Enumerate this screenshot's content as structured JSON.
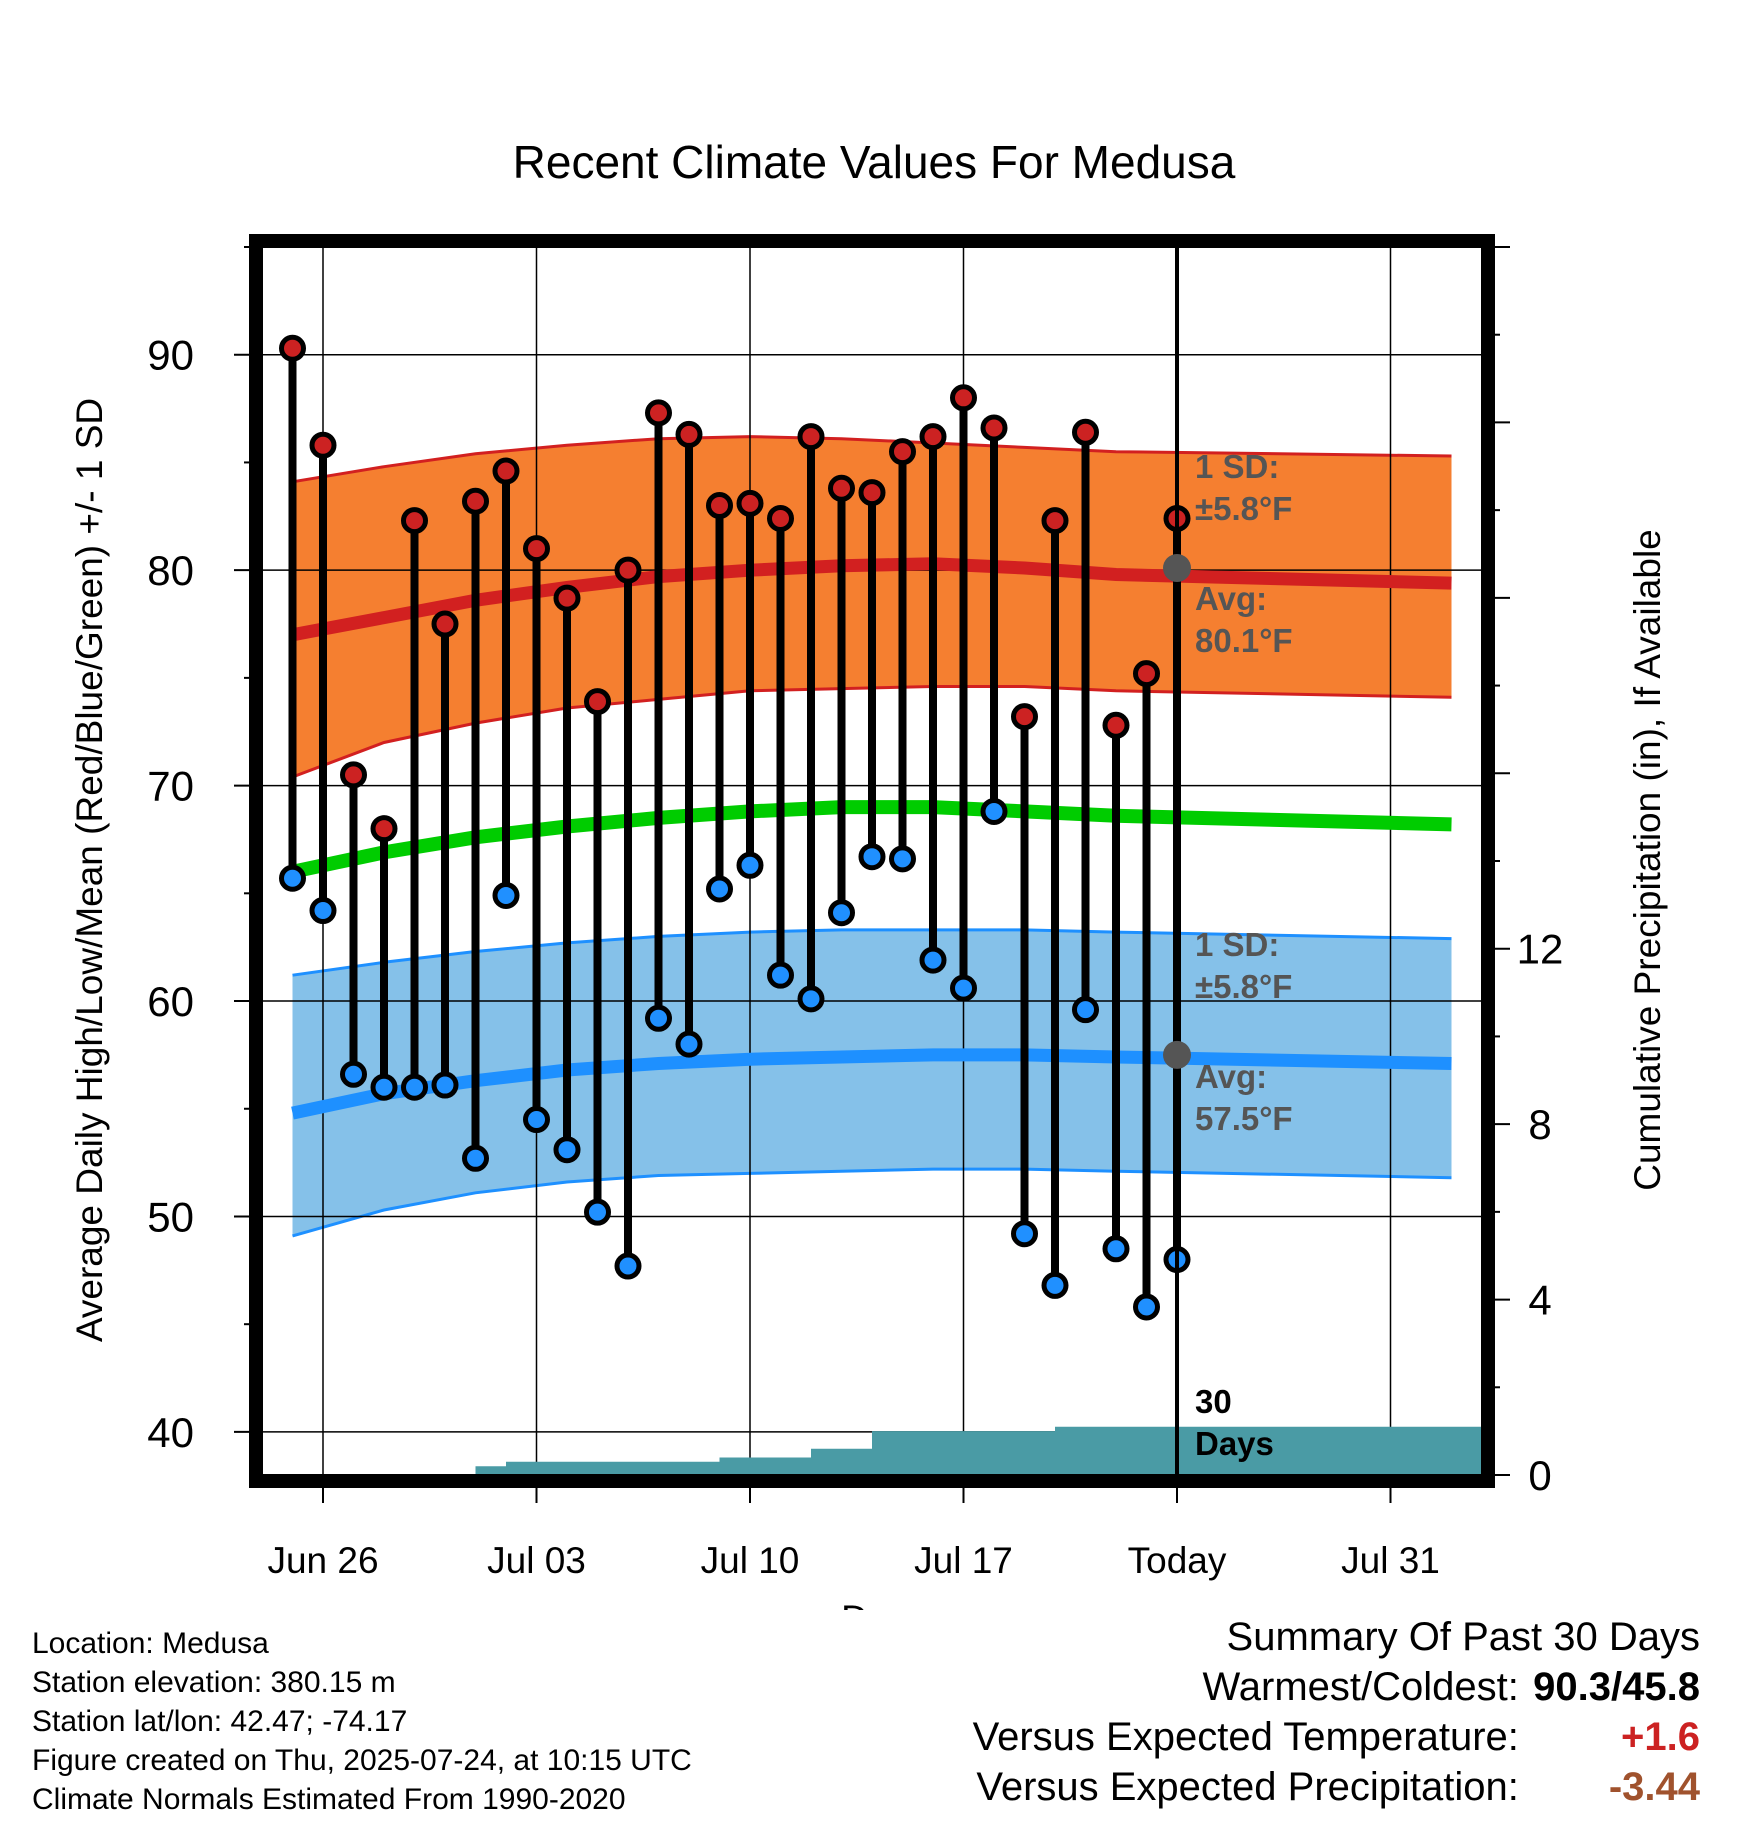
{
  "chart_data": {
    "type": "line",
    "title": "Recent Climate Values For Medusa",
    "xlabel": "Day",
    "ylabel": "Average Daily High/Low/Mean (Red/Blue/Green) +/- 1 SD",
    "ylabel_right": "Cumulative Precipitation (in), If Available",
    "ylim": [
      38,
      95
    ],
    "ylim_right": [
      0,
      28
    ],
    "x_tick_labels": [
      "Jun 26",
      "Jul 03",
      "Jul 10",
      "Jul 17",
      "Today",
      "Jul 31"
    ],
    "y_tick_labels": [
      "40",
      "50",
      "60",
      "70",
      "80",
      "90"
    ],
    "y_right_tick_labels": [
      "0",
      "4",
      "8",
      "12"
    ],
    "today_label": "30\nDays",
    "days": [
      "Jun 23",
      "Jun 24",
      "Jun 25",
      "Jun 26",
      "Jun 27",
      "Jun 28",
      "Jun 29",
      "Jun 30",
      "Jul 01",
      "Jul 02",
      "Jul 03",
      "Jul 04",
      "Jul 05",
      "Jul 06",
      "Jul 07",
      "Jul 08",
      "Jul 09",
      "Jul 10",
      "Jul 11",
      "Jul 12",
      "Jul 13",
      "Jul 14",
      "Jul 15",
      "Jul 16",
      "Jul 17",
      "Jul 18",
      "Jul 19",
      "Jul 20",
      "Jul 21",
      "Jul 22",
      "Jul 23",
      "Jul 24"
    ],
    "observed": {
      "dates": [
        "Jun 25",
        "Jun 26",
        "Jun 27",
        "Jun 28",
        "Jun 29",
        "Jun 30",
        "Jul 01",
        "Jul 02",
        "Jul 03",
        "Jul 04",
        "Jul 05",
        "Jul 06",
        "Jul 07",
        "Jul 08",
        "Jul 09",
        "Jul 10",
        "Jul 11",
        "Jul 12",
        "Jul 13",
        "Jul 14",
        "Jul 15",
        "Jul 16",
        "Jul 17",
        "Jul 18",
        "Jul 19",
        "Jul 20",
        "Jul 21",
        "Jul 22",
        "Jul 23",
        "Jul 24"
      ],
      "high": [
        90.3,
        85.8,
        70.5,
        68.0,
        82.3,
        77.5,
        83.2,
        84.6,
        81.0,
        78.7,
        73.9,
        80.0,
        87.3,
        86.3,
        83.0,
        83.1,
        82.4,
        86.2,
        83.8,
        83.6,
        85.5,
        86.2,
        88.0,
        86.6,
        73.2,
        82.3,
        86.4,
        72.8,
        75.2,
        82.4
      ],
      "low": [
        65.7,
        64.2,
        56.6,
        56.0,
        56.0,
        56.1,
        52.7,
        64.9,
        54.5,
        53.1,
        50.2,
        47.7,
        59.2,
        58.0,
        65.2,
        66.3,
        61.2,
        60.1,
        64.1,
        66.7,
        66.6,
        61.9,
        60.6,
        68.8,
        49.2,
        46.8,
        59.6,
        48.5,
        45.8,
        48.0
      ]
    },
    "normals": {
      "high_avg": [
        77.0,
        77.8,
        78.6,
        79.2,
        79.7,
        80.0,
        80.2,
        80.3,
        80.1,
        79.8,
        79.4
      ],
      "high_upper": [
        84.1,
        84.8,
        85.4,
        85.8,
        86.1,
        86.2,
        86.1,
        85.9,
        85.7,
        85.5,
        85.3
      ],
      "high_lower": [
        70.4,
        72.0,
        72.9,
        73.6,
        74.0,
        74.4,
        74.5,
        74.6,
        74.6,
        74.4,
        74.1
      ],
      "mean": [
        66.0,
        66.9,
        67.6,
        68.1,
        68.5,
        68.8,
        69.0,
        69.0,
        68.8,
        68.6,
        68.2
      ],
      "low_avg": [
        54.8,
        55.7,
        56.3,
        56.8,
        57.1,
        57.3,
        57.4,
        57.5,
        57.5,
        57.4,
        57.1
      ],
      "low_upper": [
        61.2,
        61.8,
        62.3,
        62.7,
        63.0,
        63.2,
        63.3,
        63.3,
        63.3,
        63.2,
        62.9
      ],
      "low_lower": [
        49.1,
        50.3,
        51.1,
        51.6,
        51.9,
        52.0,
        52.1,
        52.2,
        52.2,
        52.1,
        51.8
      ],
      "x_days": [
        -29,
        -26,
        -23,
        -20,
        -17,
        -14,
        -11,
        -8,
        -5,
        -2,
        9
      ]
    },
    "annotations": {
      "high_sd": "1 SD:",
      "high_sd_val": "±5.8°F",
      "high_avg_label": "Avg:",
      "high_avg_val": "80.1°F",
      "low_sd": "1 SD:",
      "low_sd_val": "±5.8°F",
      "low_avg_label": "Avg:",
      "low_avg_val": "57.5°F"
    },
    "precip": {
      "cumulative": [
        0,
        0,
        0,
        0,
        0,
        0,
        0,
        0.2,
        0.3,
        0.3,
        0.3,
        0.3,
        0.3,
        0.3,
        0.3,
        0.4,
        0.4,
        0.4,
        0.6,
        0.6,
        1.0,
        1.0,
        1.0,
        1.0,
        1.0,
        1.0,
        1.1,
        1.1,
        1.1,
        1.1,
        1.1,
        1.1,
        1.1,
        1.1,
        1.1,
        1.1,
        1.1,
        1.1,
        1.1,
        1.1
      ],
      "color": "#4a9ba5"
    },
    "colors": {
      "high": "#d22020",
      "high_band": "#f57f30",
      "mean": "#00cc00",
      "low": "#1e90ff",
      "low_band": "#85c1e9",
      "point_high": "#cc2222",
      "point_low": "#2090ff"
    }
  },
  "footer": {
    "location": "Location: Medusa",
    "elevation": "Station elevation: 380.15 m",
    "latlon": "Station lat/lon: 42.47; -74.17",
    "created": "Figure created on Thu, 2025-07-24, at 10:15 UTC",
    "normals": "Climate Normals Estimated From 1990-2020"
  },
  "summary": {
    "title": "Summary Of Past 30 Days",
    "warm_cold_label": "Warmest/Coldest:",
    "warm_cold_value": "90.3/45.8",
    "temp_label": "Versus Expected Temperature:",
    "temp_value": "+1.6",
    "temp_color": "#cc2222",
    "precip_label": "Versus Expected Precipitation:",
    "precip_value": "-3.44",
    "precip_color": "#a0522d"
  }
}
